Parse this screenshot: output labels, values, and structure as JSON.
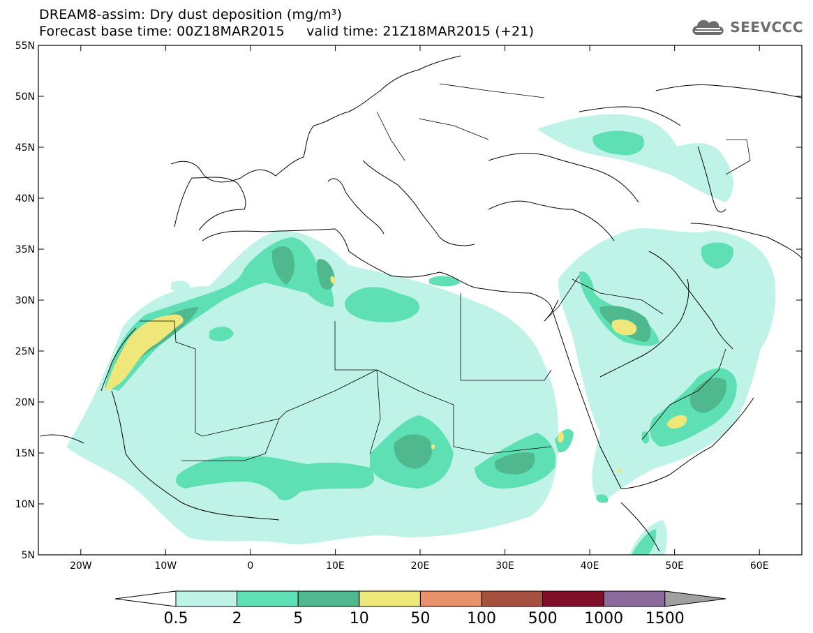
{
  "header": {
    "title_line1": "DREAM8-assim: Dry dust deposition (mg/m³)",
    "title_line2_left": "Forecast base time: 00Z18MAR2015",
    "title_line2_right": "valid time: 21Z18MAR2015 (+21)"
  },
  "logo": {
    "text": "SEEVCCC",
    "icon": "cloud-logo-icon"
  },
  "map": {
    "lon_range": [
      -25,
      65
    ],
    "lat_range": [
      5,
      55
    ],
    "lon_ticks": [
      {
        "value": -20,
        "label": "20W"
      },
      {
        "value": -10,
        "label": "10W"
      },
      {
        "value": 0,
        "label": "0"
      },
      {
        "value": 10,
        "label": "10E"
      },
      {
        "value": 20,
        "label": "20E"
      },
      {
        "value": 30,
        "label": "30E"
      },
      {
        "value": 40,
        "label": "40E"
      },
      {
        "value": 50,
        "label": "50E"
      },
      {
        "value": 60,
        "label": "60E"
      }
    ],
    "lat_ticks": [
      {
        "value": 55,
        "label": "55N"
      },
      {
        "value": 50,
        "label": "50N"
      },
      {
        "value": 45,
        "label": "45N"
      },
      {
        "value": 40,
        "label": "40N"
      },
      {
        "value": 35,
        "label": "35N"
      },
      {
        "value": 30,
        "label": "30N"
      },
      {
        "value": 25,
        "label": "25N"
      },
      {
        "value": 20,
        "label": "20N"
      },
      {
        "value": 15,
        "label": "15N"
      },
      {
        "value": 10,
        "label": "10N"
      },
      {
        "value": 5,
        "label": "5N"
      }
    ]
  },
  "colorbar": {
    "low_color": "#ffffff",
    "high_color": "#a0a0a0",
    "bins": [
      "#bff3e8",
      "#5fe0b4",
      "#4fb88e",
      "#f0e77a",
      "#e8916a",
      "#a85040",
      "#800f2a",
      "#8c6a9c"
    ],
    "labels": [
      "0.5",
      "2",
      "5",
      "10",
      "50",
      "100",
      "500",
      "1000",
      "1500"
    ]
  }
}
